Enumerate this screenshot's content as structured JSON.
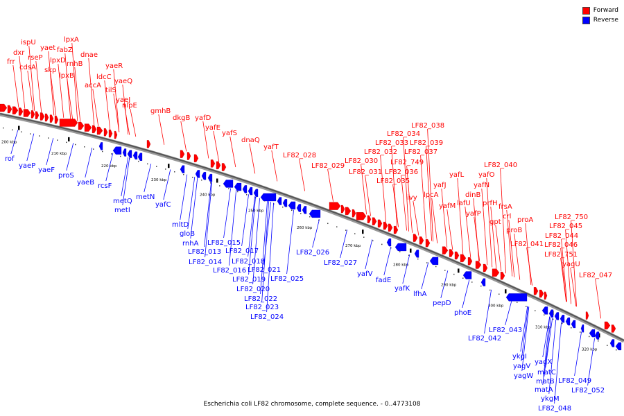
{
  "legend": {
    "forward_label": "Forward",
    "reverse_label": "Reverse",
    "forward_color": "#ff0000",
    "reverse_color": "#0000ff"
  },
  "caption": "Escherichia coli LF82 chromosome, complete sequence. - 0..4773108",
  "ticks": [
    "200 kbp",
    "210 kbp",
    "220 kbp",
    "230 kbp",
    "240 kbp",
    "250 kbp",
    "260 kbp",
    "270 kbp",
    "280 kbp",
    "290 kbp",
    "300 kbp",
    "310 kbp",
    "320 kbp"
  ],
  "forward_genes": [
    "frr",
    "dxr",
    "ispU",
    "rseP",
    "cdsA",
    "yaet",
    "skp",
    "lpxD",
    "fabZ",
    "lpxA",
    "lpxB",
    "rnhB",
    "dnae",
    "accA",
    "ldcC",
    "yaeR",
    "tilS",
    "yaeQ",
    "yaeJ",
    "nlpE",
    "gmhB",
    "dkgB",
    "yafD",
    "yafE",
    "yafS",
    "dnaQ",
    "yafT",
    "LF82_028",
    "LF82_029",
    "LF82_030",
    "LF82_031",
    "LF82_032",
    "LF82_033",
    "LF82_034",
    "LF82_038",
    "LF82_037",
    "LF82_039",
    "LF82_749",
    "LF82_036",
    "LF82_035",
    "ivy",
    "lpcA",
    "yafJ",
    "yafL",
    "yafM",
    "lafU",
    "dinB",
    "yafP",
    "yafN",
    "yafO",
    "LF82_040",
    "prfH",
    "gpt",
    "frsA",
    "crl",
    "proB",
    "proA",
    "LF82_041",
    "LF82_044",
    "LF82_046",
    "LF82_045",
    "LF82_750",
    "LF82_751",
    "yagU",
    "LF82_047"
  ],
  "reverse_genes": [
    "rof",
    "yaeP",
    "yaeF",
    "proS",
    "yaeB",
    "rcsF",
    "metQ",
    "metI",
    "metN",
    "yafC",
    "mltD",
    "gloB",
    "rnhA",
    "LF82_015",
    "LF82_013",
    "LF82_014",
    "LF82_017",
    "LF82_016",
    "LF82_018",
    "LF82_021",
    "LF82_019",
    "LF82_020",
    "LF82_025",
    "LF82_022",
    "LF82_023",
    "LF82_024",
    "LF82_026",
    "LF82_027",
    "yafV",
    "fadE",
    "yafK",
    "lfhA",
    "pepD",
    "phoE",
    "LF82_043",
    "LF82_042",
    "ykgI",
    "yagV",
    "yagW",
    "yagX",
    "matC",
    "matB",
    "matA",
    "ykgM",
    "LF82_048",
    "LF82_049",
    "LF82_052"
  ]
}
